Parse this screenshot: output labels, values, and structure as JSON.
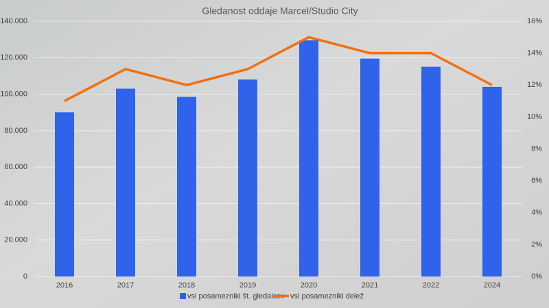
{
  "chart_data": {
    "type": "bar",
    "title": "Gledanost oddaje Marcel/Studio City",
    "categories": [
      "2016",
      "2017",
      "2018",
      "2019",
      "2020",
      "2021",
      "2022",
      "2024"
    ],
    "series": [
      {
        "name": "vsi posamezniki št. gledalcev",
        "type": "bar",
        "color": "#2f63ea",
        "values": [
          90000,
          103000,
          98500,
          108000,
          129500,
          119500,
          115000,
          104000
        ]
      },
      {
        "name": "vsi posamezniki delež",
        "type": "line",
        "axis": "y2",
        "color": "#f07010",
        "values": [
          11,
          13,
          12,
          13,
          15,
          14,
          14,
          12
        ]
      }
    ],
    "ylim": [
      0,
      140000
    ],
    "yticks": [
      0,
      {
        "value": 20000,
        "label": "20.000"
      },
      {
        "value": 40000,
        "label": "40.000"
      },
      {
        "value": 60000,
        "label": "60.000"
      },
      {
        "value": 80000,
        "label": "80.000"
      },
      {
        "value": 100000,
        "label": "100.000"
      },
      {
        "value": 120000,
        "label": "120.000"
      },
      {
        "value": 140000,
        "label": "140.000"
      }
    ],
    "y2lim": [
      0,
      16
    ],
    "y2ticks": [
      {
        "value": 0,
        "label": "0%"
      },
      {
        "value": 2,
        "label": "2%"
      },
      {
        "value": 4,
        "label": "4%"
      },
      {
        "value": 6,
        "label": "6%"
      },
      {
        "value": 8,
        "label": "8%"
      },
      {
        "value": 10,
        "label": "10%"
      },
      {
        "value": 12,
        "label": "12%"
      },
      {
        "value": 14,
        "label": "14%"
      },
      {
        "value": 16,
        "label": "16%"
      }
    ],
    "grid": true,
    "legend": "bottom"
  }
}
